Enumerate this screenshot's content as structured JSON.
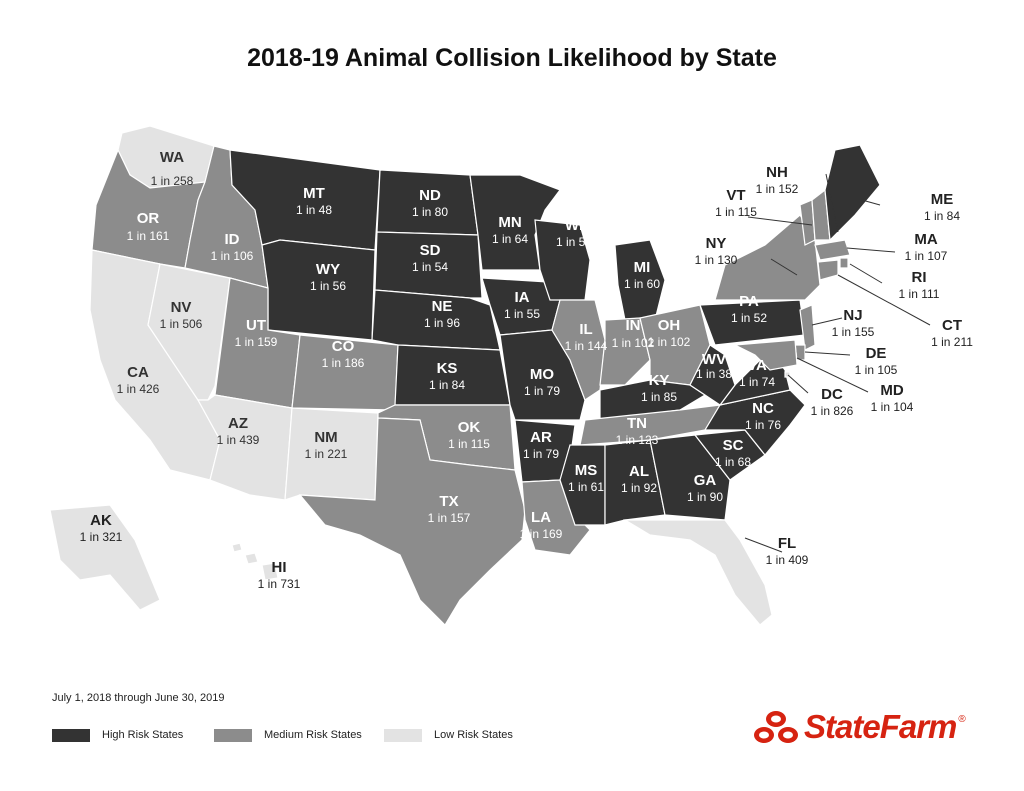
{
  "title": "2018-19 Animal Collision Likelihood by State",
  "period": "July 1, 2018 through June 30, 2019",
  "colors": {
    "high": "#333333",
    "medium": "#8c8c8c",
    "low": "#e3e3e3",
    "logo": "#d62311"
  },
  "legend": [
    {
      "risk": "high",
      "label": "High Risk States"
    },
    {
      "risk": "medium",
      "label": "Medium Risk States"
    },
    {
      "risk": "low",
      "label": "Low Risk States"
    }
  ],
  "logo": {
    "brand": "StateFarm",
    "mark": "®"
  },
  "states": {
    "WA": {
      "odds": "1 in 258",
      "risk": "low"
    },
    "OR": {
      "odds": "1 in 161",
      "risk": "medium"
    },
    "CA": {
      "odds": "1 in 426",
      "risk": "low"
    },
    "NV": {
      "odds": "1 in 506",
      "risk": "low"
    },
    "ID": {
      "odds": "1 in 106",
      "risk": "medium"
    },
    "MT": {
      "odds": "1 in 48",
      "risk": "high"
    },
    "WY": {
      "odds": "1 in 56",
      "risk": "high"
    },
    "UT": {
      "odds": "1 in 159",
      "risk": "medium"
    },
    "CO": {
      "odds": "1 in 186",
      "risk": "medium"
    },
    "AZ": {
      "odds": "1 in 439",
      "risk": "low"
    },
    "NM": {
      "odds": "1 in 221",
      "risk": "low"
    },
    "ND": {
      "odds": "1 in 80",
      "risk": "high"
    },
    "SD": {
      "odds": "1 in 54",
      "risk": "high"
    },
    "NE": {
      "odds": "1 in 96",
      "risk": "high"
    },
    "KS": {
      "odds": "1 in 84",
      "risk": "high"
    },
    "OK": {
      "odds": "1 in 115",
      "risk": "medium"
    },
    "TX": {
      "odds": "1 in 157",
      "risk": "medium"
    },
    "MN": {
      "odds": "1 in 64",
      "risk": "high"
    },
    "IA": {
      "odds": "1 in 55",
      "risk": "high"
    },
    "MO": {
      "odds": "1 in 79",
      "risk": "high"
    },
    "AR": {
      "odds": "1 in 79",
      "risk": "high"
    },
    "LA": {
      "odds": "1 in 169",
      "risk": "medium"
    },
    "WI": {
      "odds": "1 in 57",
      "risk": "high"
    },
    "IL": {
      "odds": "1 in 144",
      "risk": "medium"
    },
    "MI": {
      "odds": "1 in 60",
      "risk": "high"
    },
    "IN": {
      "odds": "1 in 102",
      "risk": "medium"
    },
    "OH": {
      "odds": "1 in 102",
      "risk": "medium"
    },
    "KY": {
      "odds": "1 in 85",
      "risk": "high"
    },
    "TN": {
      "odds": "1 in 123",
      "risk": "medium"
    },
    "MS": {
      "odds": "1 in 61",
      "risk": "high"
    },
    "AL": {
      "odds": "1 in 92",
      "risk": "high"
    },
    "GA": {
      "odds": "1 in 90",
      "risk": "high"
    },
    "FL": {
      "odds": "1 in 409",
      "risk": "low"
    },
    "SC": {
      "odds": "1 in 68",
      "risk": "high"
    },
    "NC": {
      "odds": "1 in 76",
      "risk": "high"
    },
    "VA": {
      "odds": "1 in 74",
      "risk": "high"
    },
    "WV": {
      "odds": "1 in 38",
      "risk": "high"
    },
    "PA": {
      "odds": "1 in 52",
      "risk": "high"
    },
    "NY": {
      "odds": "1 in 130",
      "risk": "medium"
    },
    "VT": {
      "odds": "1 in 115",
      "risk": "medium"
    },
    "NH": {
      "odds": "1 in 152",
      "risk": "medium"
    },
    "ME": {
      "odds": "1 in 84",
      "risk": "high"
    },
    "MA": {
      "odds": "1 in 107",
      "risk": "medium"
    },
    "RI": {
      "odds": "1 in 111",
      "risk": "medium"
    },
    "CT": {
      "odds": "1 in 211",
      "risk": "medium"
    },
    "NJ": {
      "odds": "1 in 155",
      "risk": "medium"
    },
    "DE": {
      "odds": "1 in 105",
      "risk": "medium"
    },
    "MD": {
      "odds": "1 in 104",
      "risk": "medium"
    },
    "DC": {
      "odds": "1 in 826",
      "risk": "low"
    },
    "AK": {
      "odds": "1 in 321",
      "risk": "low"
    },
    "HI": {
      "odds": "1 in 731",
      "risk": "low"
    }
  }
}
